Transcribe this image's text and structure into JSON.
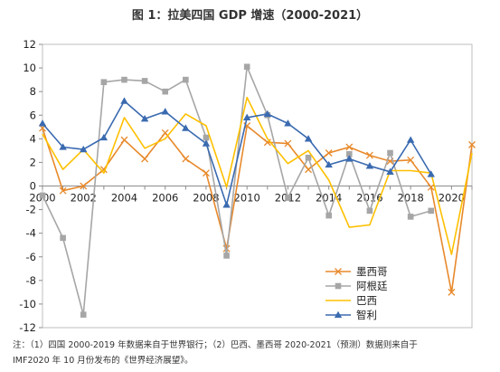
{
  "title": "图 1：拉美四国 GDP 增速（2000-2021）",
  "note": {
    "line1": "注：（1）四国 2000-2019 年数据来自于世界银行；（2）巴西、墨西哥 2020-2021（预测）数据则来自于",
    "line2": "IMF2020 年 10 月份发布的《世界经济展望》。"
  },
  "chart_data": {
    "type": "line",
    "title": "图 1：拉美四国 GDP 增速（2000-2021）",
    "xlabel": "",
    "ylabel": "",
    "xlim": [
      2000,
      2021
    ],
    "ylim": [
      -12,
      12
    ],
    "x_ticks": [
      2000,
      2002,
      2004,
      2006,
      2008,
      2010,
      2012,
      2014,
      2016,
      2018,
      2020
    ],
    "y_ticks": [
      12,
      10,
      8,
      6,
      4,
      2,
      0,
      -2,
      -4,
      -6,
      -8,
      -10,
      -12
    ],
    "grid": false,
    "legend_position": "bottom-right",
    "x": [
      2000,
      2001,
      2002,
      2003,
      2004,
      2005,
      2006,
      2007,
      2008,
      2009,
      2010,
      2011,
      2012,
      2013,
      2014,
      2015,
      2016,
      2017,
      2018,
      2019,
      2020,
      2021
    ],
    "series": [
      {
        "name": "墨西哥",
        "color": "#E8892B",
        "marker": "x",
        "values": [
          4.9,
          -0.4,
          0.0,
          1.4,
          3.9,
          2.3,
          4.5,
          2.3,
          1.1,
          -5.3,
          5.1,
          3.7,
          3.6,
          1.4,
          2.8,
          3.3,
          2.6,
          2.1,
          2.2,
          -0.1,
          -9.0,
          3.5
        ]
      },
      {
        "name": "阿根廷",
        "color": "#A6A6A6",
        "marker": "square",
        "values": [
          -0.8,
          -4.4,
          -10.9,
          8.8,
          9.0,
          8.9,
          8.0,
          9.0,
          4.1,
          -5.9,
          10.1,
          6.0,
          -1.0,
          2.4,
          -2.5,
          2.7,
          -2.1,
          2.8,
          -2.6,
          -2.1,
          null,
          null
        ]
      },
      {
        "name": "巴西",
        "color": "#FFC000",
        "marker": "none",
        "values": [
          4.4,
          1.4,
          3.1,
          1.1,
          5.8,
          3.2,
          4.0,
          6.1,
          5.1,
          -0.1,
          7.5,
          4.0,
          1.9,
          3.0,
          0.5,
          -3.5,
          -3.3,
          1.3,
          1.3,
          1.1,
          -5.8,
          2.8
        ]
      },
      {
        "name": "智利",
        "color": "#3A6AB0",
        "marker": "triangle",
        "values": [
          5.3,
          3.3,
          3.1,
          4.1,
          7.2,
          5.7,
          6.3,
          4.9,
          3.6,
          -1.6,
          5.8,
          6.1,
          5.3,
          4.0,
          1.8,
          2.3,
          1.7,
          1.2,
          3.9,
          1.0,
          null,
          null
        ]
      }
    ]
  }
}
